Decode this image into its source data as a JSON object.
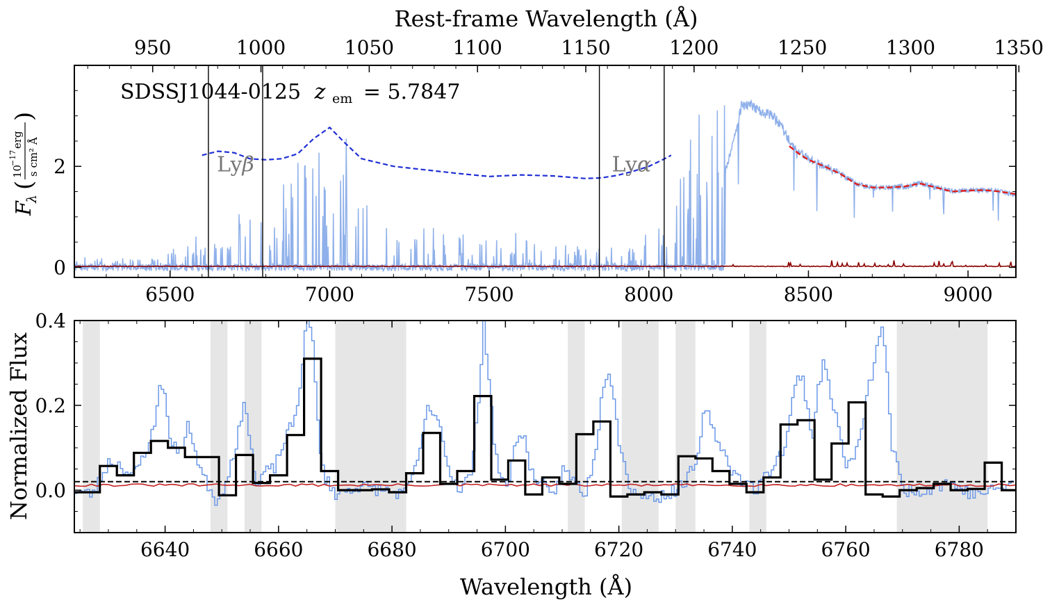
{
  "chart_data": [
    {
      "type": "line",
      "panel": "top",
      "annotation": "SDSSJ1044-0125 z_em = 5.7847",
      "annotation_parts": {
        "object": "SDSSJ1044-0125",
        "z_symbol": "z",
        "z_sub": "em",
        "z_value": "= 5.7847"
      },
      "xlabel": "",
      "x2label": "Rest-frame Wavelength (Å)",
      "ylabel": "F_λ (10^-17 erg / s cm² Å)",
      "ylabel_parts": {
        "symbol": "F",
        "sub": "λ",
        "num": "10",
        "exp": "−17",
        "unit_num": "erg",
        "unit_den": "s cm² Å"
      },
      "xlim": [
        6200,
        9150
      ],
      "ylim": [
        -0.2,
        4.0
      ],
      "xticks": [
        6500,
        7000,
        7500,
        8000,
        8500,
        9000
      ],
      "yticks": [
        0,
        2
      ],
      "x2ticks": [
        950,
        1000,
        1050,
        1100,
        1150,
        1200,
        1250,
        1300,
        1350
      ],
      "redshift": 5.7847,
      "vlines": [
        6620,
        6790,
        7845,
        8048
      ],
      "line_labels": [
        {
          "text": "Lyβ",
          "name": "Ly",
          "greek": "β",
          "x": 6705,
          "y": 1.9
        },
        {
          "text": "Lyα",
          "name": "Ly",
          "greek": "α",
          "x": 7946,
          "y": 1.9
        }
      ],
      "continuum_blue": {
        "x": [
          6600,
          6650,
          6700,
          6750,
          6800,
          6850,
          6900,
          6950,
          7000,
          7050,
          7100,
          7200,
          7300,
          7400,
          7500,
          7600,
          7700,
          7800,
          7850,
          7900,
          7950,
          8000,
          8040,
          8070
        ],
        "y": [
          2.22,
          2.3,
          2.27,
          2.15,
          2.13,
          2.15,
          2.25,
          2.55,
          2.77,
          2.45,
          2.15,
          2.0,
          1.93,
          1.86,
          1.8,
          1.83,
          1.81,
          1.76,
          1.77,
          1.82,
          1.9,
          2.0,
          2.12,
          2.22
        ]
      },
      "continuum_red": {
        "x": [
          8440,
          8470,
          8500,
          8550,
          8600,
          8650,
          8700,
          8750,
          8800,
          8850,
          8900,
          8950,
          9000,
          9050,
          9100,
          9150
        ],
        "y": [
          2.4,
          2.25,
          2.13,
          2.0,
          1.85,
          1.65,
          1.58,
          1.58,
          1.6,
          1.66,
          1.58,
          1.5,
          1.52,
          1.53,
          1.5,
          1.45
        ]
      },
      "flux_envelope": {
        "x": [
          6200,
          6250,
          6300,
          6400,
          6500,
          6600,
          6700,
          6800,
          6900,
          7000,
          7100,
          7200,
          7300,
          7400,
          7500,
          7600,
          7700,
          7800,
          7900,
          8000,
          8100,
          8200,
          8240,
          8270,
          8290,
          8320,
          8350,
          8400,
          8450,
          8500,
          8550,
          8600,
          8650,
          8700,
          8750,
          8800,
          8850,
          8900,
          8950,
          9000,
          9050,
          9100,
          9150
        ],
        "y": [
          0.02,
          0.03,
          0.03,
          0.04,
          0.06,
          0.18,
          0.3,
          0.35,
          0.55,
          0.5,
          0.4,
          0.3,
          0.28,
          0.22,
          0.18,
          0.16,
          0.15,
          0.1,
          0.08,
          0.2,
          0.6,
          1.2,
          1.9,
          2.6,
          3.2,
          3.2,
          3.1,
          2.95,
          2.4,
          2.15,
          2.0,
          1.85,
          1.65,
          1.58,
          1.58,
          1.6,
          1.66,
          1.58,
          1.5,
          1.52,
          1.53,
          1.5,
          1.45
        ]
      },
      "error_level": 0.02,
      "colors": {
        "flux": "#8fb0ea",
        "continuum_blue": "#1f2fd4",
        "continuum_red": "#e0201a",
        "error": "#8b0000",
        "vline": "#000000",
        "line_label": "#777777"
      }
    },
    {
      "type": "line",
      "panel": "bottom",
      "xlabel": "Wavelength (Å)",
      "ylabel": "Normalized Flux",
      "xlim": [
        6624,
        6790
      ],
      "ylim": [
        -0.1,
        0.4
      ],
      "xticks": [
        6640,
        6660,
        6680,
        6700,
        6720,
        6740,
        6760,
        6780
      ],
      "yticks": [
        0.0,
        0.2,
        0.4
      ],
      "ytick_labels": [
        "0.0",
        "0.2",
        "0.4"
      ],
      "masked_regions": [
        [
          6625.5,
          6628.5
        ],
        [
          6648,
          6651
        ],
        [
          6654,
          6657
        ],
        [
          6670,
          6682.5
        ],
        [
          6711,
          6714
        ],
        [
          6720.5,
          6727
        ],
        [
          6730,
          6733.5
        ],
        [
          6743,
          6746
        ],
        [
          6769,
          6785
        ]
      ],
      "binned_flux": {
        "edges": [
          6624,
          6628.5,
          6631.5,
          6634.5,
          6637.5,
          6640.5,
          6643.5,
          6646.5,
          6649.5,
          6652.5,
          6655.5,
          6658.5,
          6661.5,
          6664.5,
          6667.5,
          6670.5,
          6673.5,
          6676.5,
          6679.5,
          6682.5,
          6685.5,
          6688.5,
          6691.5,
          6694.5,
          6697.5,
          6700.5,
          6703.5,
          6706.5,
          6709.5,
          6712.5,
          6715.5,
          6718.5,
          6721.5,
          6724.5,
          6727.5,
          6730.5,
          6733.5,
          6736.5,
          6739.5,
          6742.5,
          6745.5,
          6748.5,
          6751.5,
          6754.5,
          6757.5,
          6760.5,
          6763.5,
          6766.5,
          6769.5,
          6772.5,
          6775.5,
          6778.5,
          6781.5,
          6784.5,
          6787.5,
          6790
        ],
        "values": [
          -0.005,
          0.057,
          0.035,
          0.088,
          0.116,
          0.1,
          0.078,
          0.078,
          -0.012,
          0.083,
          0.017,
          0.035,
          0.13,
          0.31,
          0.045,
          0.0,
          0.0,
          0.002,
          -0.005,
          0.04,
          0.135,
          0.015,
          0.045,
          0.222,
          0.025,
          0.07,
          -0.01,
          0.03,
          0.015,
          0.132,
          0.162,
          -0.015,
          -0.01,
          -0.005,
          -0.01,
          0.08,
          0.075,
          0.045,
          0.015,
          -0.005,
          0.03,
          0.155,
          0.165,
          0.025,
          0.11,
          0.207,
          -0.01,
          -0.015,
          0.0,
          0.005,
          0.015,
          0.0,
          0.003,
          0.065,
          0.0
        ]
      },
      "unbinned_flux": {
        "x": [
          6624,
          6627,
          6630,
          6632,
          6634,
          6636,
          6638,
          6639,
          6640,
          6641,
          6643,
          6644,
          6645,
          6646,
          6647,
          6648,
          6649,
          6650,
          6652,
          6654,
          6655,
          6656,
          6657,
          6659,
          6661,
          6662,
          6663,
          6664,
          6665,
          6666,
          6667,
          6668,
          6670,
          6674,
          6678,
          6682,
          6684,
          6686,
          6687,
          6688,
          6689,
          6690,
          6692,
          6694,
          6695,
          6696,
          6697,
          6698,
          6700,
          6701,
          6702,
          6703,
          6704,
          6706,
          6708,
          6710,
          6712,
          6714,
          6716,
          6717,
          6718,
          6719,
          6720,
          6722,
          6726,
          6730,
          6732,
          6734,
          6735,
          6736,
          6738,
          6740,
          6742,
          6744,
          6746,
          6749,
          6751,
          6752,
          6754,
          6755,
          6756,
          6758,
          6760,
          6762,
          6764,
          6765,
          6766,
          6767,
          6768,
          6770,
          6774,
          6778,
          6782,
          6786,
          6790
        ],
        "y": [
          0.0,
          -0.01,
          0.07,
          0.06,
          0.03,
          0.08,
          0.15,
          0.27,
          0.2,
          0.1,
          0.1,
          0.16,
          0.1,
          0.05,
          0.02,
          0.0,
          -0.03,
          0.0,
          0.09,
          0.21,
          0.1,
          0.0,
          0.04,
          0.05,
          0.12,
          0.15,
          0.18,
          0.3,
          0.45,
          0.32,
          0.1,
          0.03,
          -0.01,
          0.01,
          0.0,
          -0.01,
          0.05,
          0.19,
          0.17,
          0.18,
          0.1,
          0.04,
          0.0,
          0.05,
          0.2,
          0.4,
          0.25,
          0.08,
          0.0,
          0.07,
          0.13,
          0.14,
          0.05,
          0.02,
          -0.02,
          0.05,
          0.02,
          -0.01,
          0.12,
          0.25,
          0.29,
          0.22,
          0.1,
          0.0,
          -0.02,
          0.0,
          0.03,
          0.08,
          0.21,
          0.15,
          0.1,
          0.04,
          0.02,
          0.0,
          0.04,
          0.1,
          0.25,
          0.28,
          0.12,
          0.25,
          0.3,
          0.18,
          0.05,
          0.1,
          0.25,
          0.3,
          0.4,
          0.3,
          0.1,
          0.0,
          0.0,
          0.02,
          -0.01,
          0.0,
          0.02
        ]
      },
      "dashed_level": 0.02,
      "error_level": 0.012,
      "colors": {
        "flux": "#6a98e8",
        "binned": "#000000",
        "masked": "#e6e6e6",
        "error": "#c42020",
        "dashed": "#000000"
      }
    }
  ]
}
